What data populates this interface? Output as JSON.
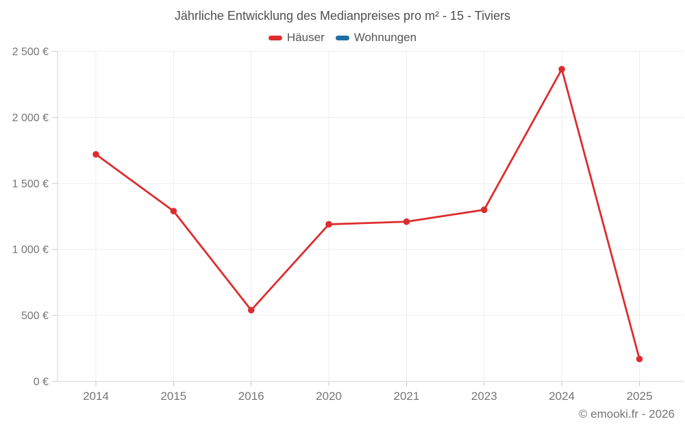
{
  "title": "Jährliche Entwicklung des Medianpreises pro m² - 15 - Tiviers",
  "legend": {
    "items": [
      {
        "label": "Häuser",
        "color": "#dd2c2e"
      },
      {
        "label": "Wohnungen",
        "color": "#1c6ea4"
      }
    ]
  },
  "footer": {
    "text": "© emooki.fr - 2026"
  },
  "colors": {
    "series_hauser": "#dd2c2e",
    "series_wohnungen": "#1c6ea4",
    "gridline": "#ededed",
    "axis_line": "#d6d6d6",
    "tick": "#c9c9c9",
    "tick_text": "#757575",
    "background": "#ffffff"
  },
  "chart_data": {
    "type": "line",
    "title": "Jährliche Entwicklung des Medianpreises pro m² - 15 - Tiviers",
    "categories": [
      "2014",
      "2015",
      "2016",
      "2020",
      "2021",
      "2023",
      "2024",
      "2025"
    ],
    "series": [
      {
        "name": "Häuser",
        "color": "#dd2c2e",
        "values": [
          1720,
          1290,
          540,
          1190,
          1210,
          1300,
          2365,
          170
        ]
      },
      {
        "name": "Wohnungen",
        "color": "#1c6ea4",
        "values": []
      }
    ],
    "xlabel": "",
    "ylabel": "",
    "ylim": [
      0,
      2500
    ],
    "ytick_step": 500,
    "ytick_labels": [
      "0 €",
      "500 €",
      "1 000 €",
      "1 500 €",
      "2 000 €",
      "2 500 €"
    ],
    "grid": true,
    "legend_position": "top",
    "annotations": [
      "© emooki.fr - 2026"
    ]
  }
}
